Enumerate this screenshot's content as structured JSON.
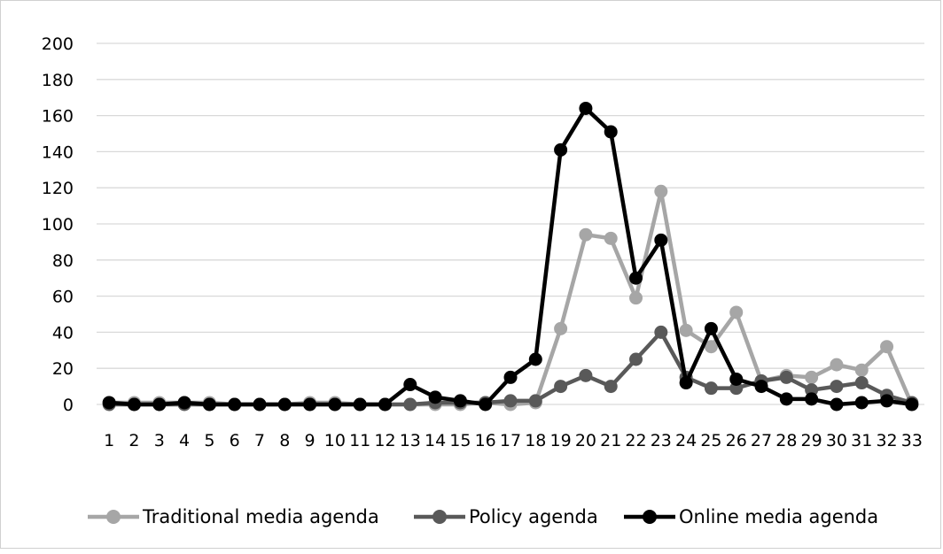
{
  "chart_data": {
    "type": "line",
    "title": "",
    "xlabel": "",
    "ylabel": "",
    "ylim": [
      0,
      200
    ],
    "y_ticks": [
      "0",
      "20",
      "40",
      "60",
      "80",
      "100",
      "120",
      "140",
      "160",
      "180",
      "200"
    ],
    "categories": [
      "1",
      "2",
      "3",
      "4",
      "5",
      "6",
      "7",
      "8",
      "9",
      "10",
      "11",
      "12",
      "13",
      "14",
      "15",
      "16",
      "17",
      "18",
      "19",
      "20",
      "21",
      "22",
      "23",
      "24",
      "25",
      "26",
      "27",
      "28",
      "29",
      "30",
      "31",
      "32",
      "33"
    ],
    "grid": true,
    "legend_position": "bottom",
    "series": [
      {
        "name": "Traditional media agenda",
        "color": "#a6a6a6",
        "values": [
          1,
          1,
          1,
          1,
          1,
          0,
          0,
          0,
          1,
          1,
          0,
          0,
          0,
          0,
          0,
          1,
          0,
          1,
          42,
          94,
          92,
          59,
          118,
          41,
          32,
          51,
          13,
          16,
          15,
          22,
          19,
          32,
          0
        ]
      },
      {
        "name": "Policy agenda",
        "color": "#595959",
        "values": [
          0,
          0,
          0,
          0,
          0,
          0,
          0,
          0,
          0,
          0,
          0,
          0,
          0,
          1,
          1,
          1,
          2,
          2,
          10,
          16,
          10,
          25,
          40,
          15,
          9,
          9,
          13,
          15,
          8,
          10,
          12,
          5,
          1
        ]
      },
      {
        "name": "Online media agenda",
        "color": "#000000",
        "values": [
          1,
          0,
          0,
          1,
          0,
          0,
          0,
          0,
          0,
          0,
          0,
          0,
          11,
          4,
          2,
          0,
          15,
          25,
          141,
          164,
          151,
          70,
          91,
          12,
          42,
          14,
          10,
          3,
          3,
          0,
          1,
          2,
          0
        ]
      }
    ]
  }
}
